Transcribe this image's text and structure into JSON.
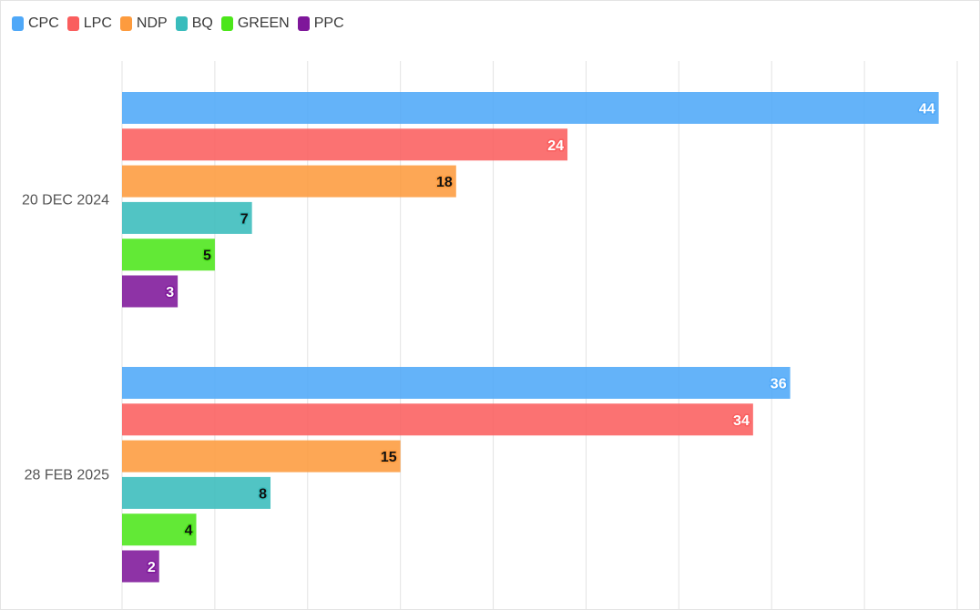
{
  "chart_data": {
    "type": "bar",
    "orientation": "horizontal",
    "categories": [
      "20 DEC 2024",
      "28 FEB 2025"
    ],
    "series": [
      {
        "name": "CPC",
        "color": "#4fa8f8",
        "values": [
          44,
          36
        ],
        "label_color": "#ffffff",
        "label_stroke": "#4fa8f8"
      },
      {
        "name": "LPC",
        "color": "#fa5e5e",
        "values": [
          24,
          34
        ],
        "label_color": "#ffffff",
        "label_stroke": "#fa5e5e"
      },
      {
        "name": "NDP",
        "color": "#fd9b3e",
        "values": [
          18,
          15
        ],
        "label_color": "#111111",
        "label_stroke": "#fd9b3e"
      },
      {
        "name": "BQ",
        "color": "#39bcbc",
        "values": [
          7,
          8
        ],
        "label_color": "#111111",
        "label_stroke": "#39bcbc"
      },
      {
        "name": "GREEN",
        "color": "#4ce61a",
        "values": [
          5,
          4
        ],
        "label_color": "#111111",
        "label_stroke": "#4ce61a"
      },
      {
        "name": "PPC",
        "color": "#7e179a",
        "values": [
          3,
          2
        ],
        "label_color": "#ffffff",
        "label_stroke": "#7e179a"
      }
    ],
    "xlim": [
      0,
      45
    ],
    "grid": true,
    "legend": "top-left",
    "title": "",
    "xlabel": "",
    "ylabel": ""
  }
}
